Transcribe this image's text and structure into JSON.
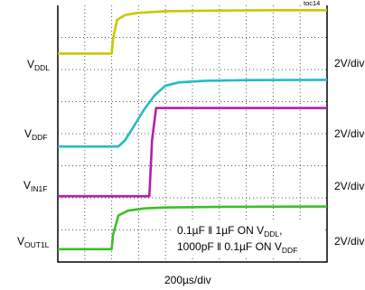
{
  "figure_tag": "toc14",
  "chart_data": {
    "type": "line",
    "title": "",
    "xlabel": "200µs/div",
    "ylabel": "",
    "grid": true,
    "divisions": {
      "x": 10,
      "y": 8
    },
    "time_per_div_us": 200,
    "series": [
      {
        "name": {
          "main": "V",
          "sub": "DDL"
        },
        "scale": "2V/div",
        "color": "#c8c800",
        "x_div": [
          0,
          2.0,
          2.05,
          2.2,
          2.5,
          3.0,
          4.0,
          6.0,
          8.0,
          10.0
        ],
        "y_div": [
          6.5,
          6.5,
          6.95,
          7.55,
          7.7,
          7.77,
          7.82,
          7.84,
          7.85,
          7.85
        ]
      },
      {
        "name": {
          "main": "V",
          "sub": "DDF"
        },
        "scale": "2V/div",
        "color": "#22bcc6",
        "x_div": [
          0,
          2.25,
          2.5,
          2.8,
          3.2,
          3.6,
          4.0,
          4.5,
          5.5,
          7.0,
          10.0
        ],
        "y_div": [
          3.6,
          3.6,
          3.8,
          4.2,
          4.75,
          5.2,
          5.5,
          5.6,
          5.65,
          5.67,
          5.68
        ]
      },
      {
        "name": {
          "main": "V",
          "sub": "IN1F"
        },
        "scale": "2V/div",
        "color": "#b020b0",
        "x_div": [
          0,
          3.4,
          3.5,
          3.65,
          10.0
        ],
        "y_div": [
          2.05,
          2.05,
          3.8,
          4.8,
          4.8
        ]
      },
      {
        "name": {
          "main": "V",
          "sub": "OUT1L"
        },
        "scale": "2V/div",
        "color": "#3cbf28",
        "x_div": [
          0,
          2.0,
          2.05,
          2.25,
          2.6,
          3.2,
          4.0,
          6.0,
          10.0
        ],
        "y_div": [
          0.4,
          0.4,
          0.85,
          1.45,
          1.6,
          1.67,
          1.7,
          1.72,
          1.73
        ]
      }
    ],
    "annotation": {
      "line1": {
        "a": "0.1µF ǁ 1µF ON V",
        "sub": "DDL",
        "b": ","
      },
      "line2": {
        "a": "1000pF ǁ 0.1µF ON V",
        "sub": "DDF",
        "b": ""
      }
    }
  }
}
